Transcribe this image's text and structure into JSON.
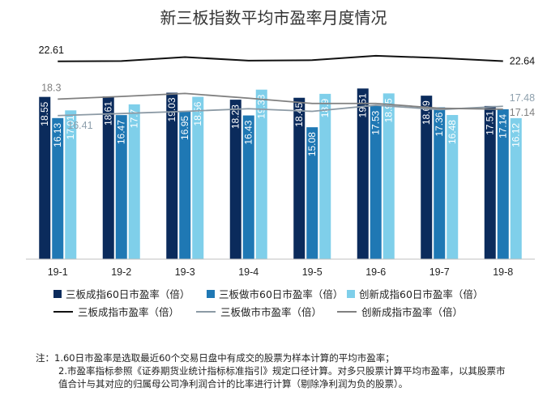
{
  "chart_data": {
    "type": "bar",
    "title": "新三板指数平均市盈率月度情况",
    "categories": [
      "19-1",
      "19-2",
      "19-3",
      "19-4",
      "19-5",
      "19-6",
      "19-7",
      "19-8"
    ],
    "series": [
      {
        "name": "三板成指60日市盈率（倍）",
        "type": "bar",
        "color": "#0b2b5c",
        "values": [
          18.55,
          18.61,
          19.03,
          18.23,
          18.45,
          19.51,
          18.69,
          17.51
        ],
        "labels": [
          "18.55",
          "18.61",
          "19.03",
          "18.23",
          "18.45",
          "19.51",
          "18.69",
          "17.51"
        ]
      },
      {
        "name": "三板做市60日市盈率（倍）",
        "type": "bar",
        "color": "#1f78b4",
        "values": [
          16.13,
          16.47,
          16.95,
          16.43,
          15.08,
          17.53,
          17.36,
          17.14
        ],
        "labels": [
          "16.13",
          "16.47",
          "16.95",
          "16.43",
          "15.08",
          "17.53",
          "17.36",
          "17.14"
        ]
      },
      {
        "name": "创新成指60日市盈率（倍）",
        "type": "bar",
        "color": "#7fcfea",
        "values": [
          17.01,
          17.7,
          18.56,
          19.38,
          18.9,
          18.95,
          16.48,
          16.12
        ],
        "labels": [
          "17.01",
          "17.7",
          "18.56",
          "19.38",
          "18.9",
          "18.95",
          "16.48",
          "16.12"
        ]
      },
      {
        "name": "三板成指市盈率（倍）",
        "type": "line",
        "color": "#111111",
        "values": [
          22.61,
          22.65,
          23.1,
          22.7,
          22.75,
          23.25,
          23.0,
          22.64
        ],
        "labels": [
          "22.61",
          "",
          "",
          "",
          "",
          "",
          "",
          "22.64"
        ],
        "label_color": "#111111"
      },
      {
        "name": "三板做市市盈率（倍）",
        "type": "line",
        "color": "#8c9aa5",
        "values": [
          16.41,
          16.65,
          16.9,
          17.2,
          16.9,
          17.6,
          17.1,
          17.48
        ],
        "labels": [
          "16.41",
          "",
          "",
          "",
          "",
          "",
          "",
          "17.48"
        ],
        "label_color": "#8ea0ad"
      },
      {
        "name": "创新成指市盈率（倍）",
        "type": "line",
        "color": "#808080",
        "values": [
          18.3,
          18.6,
          18.95,
          18.4,
          17.8,
          17.8,
          17.25,
          17.14
        ],
        "labels": [
          "18.3",
          "",
          "",
          "",
          "",
          "",
          "",
          "17.14"
        ],
        "label_color": "#7f7f7f"
      }
    ],
    "ylim": [
      0,
      25
    ],
    "grid": false,
    "legend": "bottom"
  },
  "notes": [
    "注：1.60日市盈率是选取最近60个交易日盘中有成交的股票为样本计算的平均市盈率；",
    "2.市盈率指标参照《证券期货业统计指标标准指引》规定口径计算。对多只股票计算平均市盈率，以其股票市值合计与其对应的归属母公司净利润合计的比率进行计算（剔除净利润为负的股票）。"
  ]
}
